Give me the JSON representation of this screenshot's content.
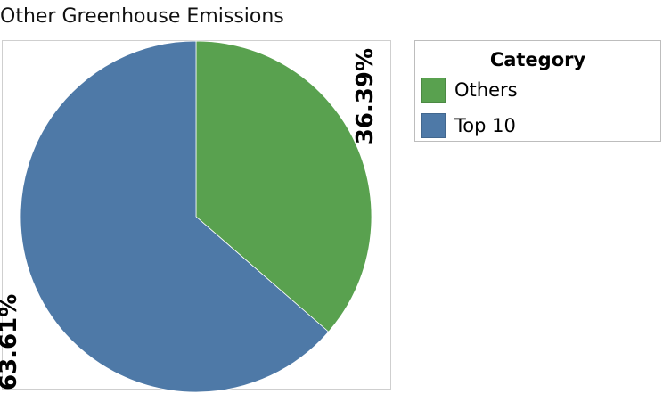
{
  "chart_data": {
    "type": "pie",
    "title": "Other Greenhouse Emissions",
    "legend_title": "Category",
    "legend_position": "right",
    "slices": [
      {
        "name": "Others",
        "value": 36.39,
        "label": "36.39%",
        "color": "#59A14F"
      },
      {
        "name": "Top 10",
        "value": 63.61,
        "label": "63.61%",
        "color": "#4E79A7"
      }
    ],
    "start_angle": "12 o'clock",
    "direction": "clockwise"
  }
}
